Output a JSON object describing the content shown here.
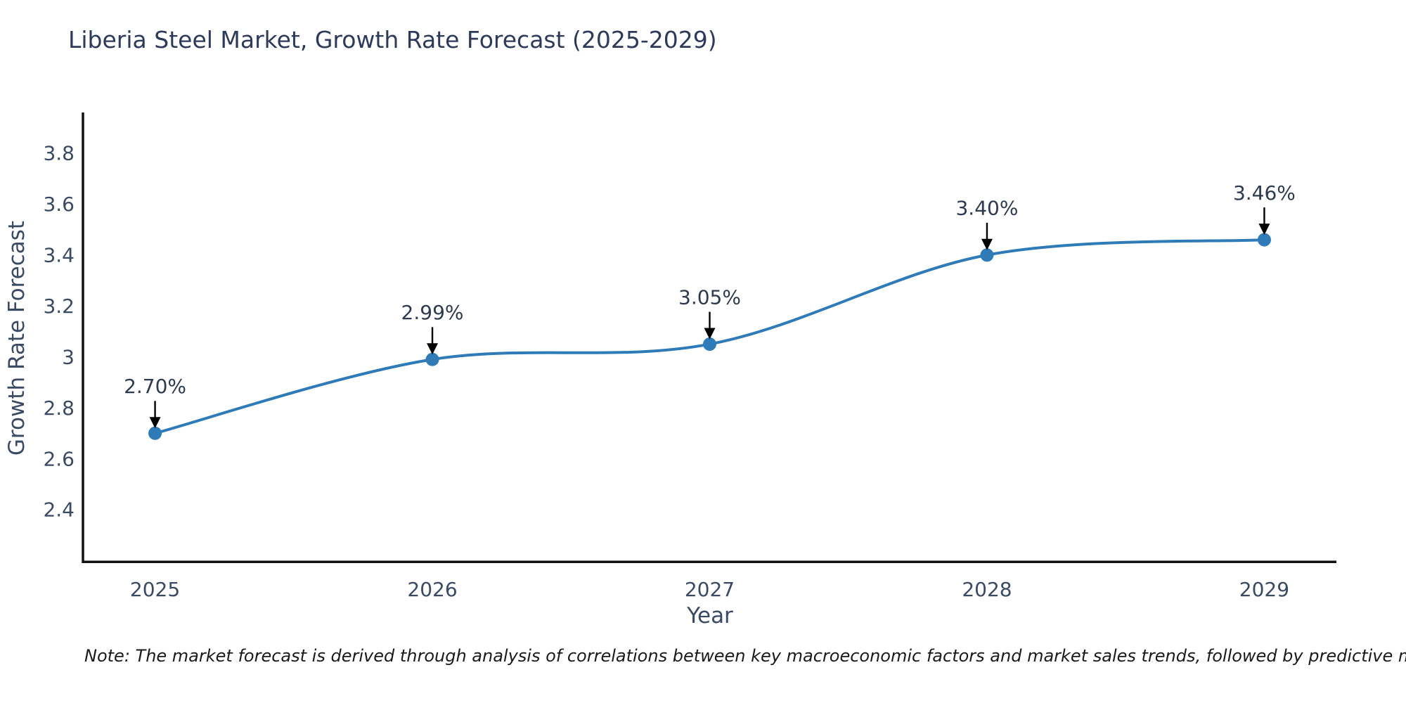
{
  "chart_data": {
    "type": "line",
    "title": "Liberia Steel Market, Growth Rate Forecast (2025-2029)",
    "xlabel": "Year",
    "ylabel": "Growth Rate Forecast",
    "categories": [
      2025,
      2026,
      2027,
      2028,
      2029
    ],
    "series": [
      {
        "name": "Growth Rate Forecast",
        "values": [
          2.7,
          2.99,
          3.05,
          3.4,
          3.46
        ],
        "point_labels": [
          "2.70%",
          "2.99%",
          "3.05%",
          "3.40%",
          "3.46%"
        ]
      }
    ],
    "yticks": [
      {
        "value": 2.4,
        "label": "2.4"
      },
      {
        "value": 2.6,
        "label": "2.6"
      },
      {
        "value": 2.8,
        "label": "2.8"
      },
      {
        "value": 3.0,
        "label": "3"
      },
      {
        "value": 3.2,
        "label": "3.2"
      },
      {
        "value": 3.4,
        "label": "3.4"
      },
      {
        "value": 3.6,
        "label": "3.6"
      },
      {
        "value": 3.8,
        "label": "3.8"
      }
    ],
    "xlim": [
      2024.74,
      2029.26
    ],
    "ylim": [
      2.19,
      3.96
    ],
    "grid": false,
    "legend": "none",
    "annotation_arrows": true
  },
  "colors": {
    "line": "#2e7bb8",
    "marker": "#2e7bb8",
    "axis": "#111111",
    "title_text": "#2d3a5a",
    "axis_title_text": "#3b4a63",
    "tick_text": "#3b4a63",
    "annotation_text": "#2e3a4e",
    "arrow": "#000000",
    "note_text": "#1a1a1a",
    "background": "#ffffff"
  },
  "note": {
    "text": "Note: The market forecast is derived through analysis of correlations between key macroeconomic factors and market sales trends, followed by predictive modeling to project future sales"
  }
}
